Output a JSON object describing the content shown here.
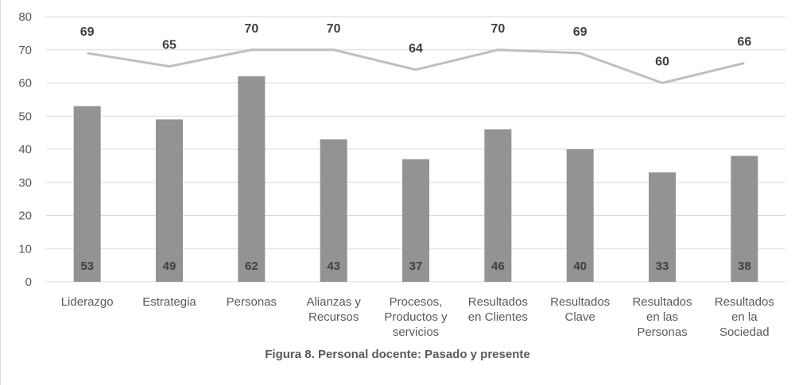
{
  "caption": "Figura 8. Personal docente: Pasado y presente",
  "colors": {
    "bar": "#939393",
    "line": "#bfbfbf",
    "grid": "#d9d9d9",
    "axis_text": "#595959",
    "label_dark": "#404040"
  },
  "chart_data": {
    "type": "bar",
    "title": "",
    "xlabel": "",
    "ylabel": "",
    "ylim": [
      0,
      80
    ],
    "yticks": [
      0,
      10,
      20,
      30,
      40,
      50,
      60,
      70,
      80
    ],
    "grid": true,
    "legend": "none",
    "categories": [
      [
        "Liderazgo"
      ],
      [
        "Estrategia"
      ],
      [
        "Personas"
      ],
      [
        "Alianzas y",
        "Recursos"
      ],
      [
        "Procesos,",
        "Productos y",
        "servicios"
      ],
      [
        "Resultados",
        "en Clientes"
      ],
      [
        "Resultados",
        "Clave"
      ],
      [
        "Resultados",
        "en las",
        "Personas"
      ],
      [
        "Resultados",
        "en la",
        "Sociedad"
      ]
    ],
    "series": [
      {
        "type": "bar",
        "values": [
          53,
          49,
          62,
          43,
          37,
          46,
          40,
          33,
          38
        ]
      },
      {
        "type": "line",
        "values": [
          69,
          65,
          70,
          70,
          64,
          70,
          69,
          60,
          66
        ]
      }
    ]
  }
}
